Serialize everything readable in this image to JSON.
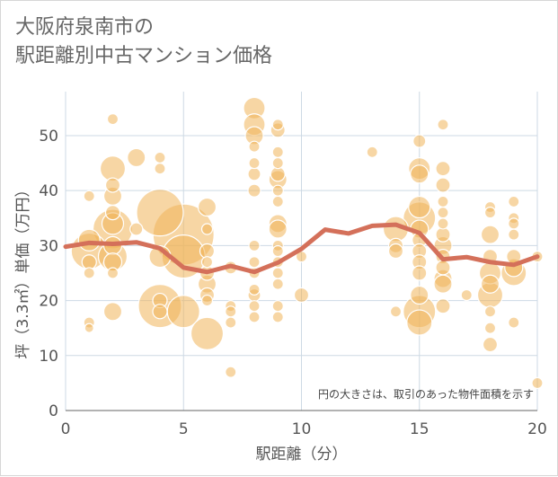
{
  "title_line1": "大阪府泉南市の",
  "title_line2": "駅距離別中古マンション価格",
  "colors": {
    "bubble": "#f0b45a",
    "line": "#d4705a",
    "grid": "#cdd9e4",
    "text": "#555555"
  },
  "chart_data": {
    "type": "scatter",
    "xlabel": "駅距離（分）",
    "ylabel": "坪（3.3㎡）単価（万円）",
    "note": "円の大きさは、取引のあった物件面積を示す",
    "xlim": [
      0,
      20
    ],
    "ylim": [
      0,
      58
    ],
    "x_ticks": [
      0,
      5,
      10,
      15,
      20
    ],
    "y_ticks": [
      0,
      10,
      20,
      30,
      40,
      50
    ],
    "grid": true,
    "bubbles": [
      {
        "x": 1,
        "y": 39,
        "s": 6
      },
      {
        "x": 1,
        "y": 31,
        "s": 12
      },
      {
        "x": 1,
        "y": 29,
        "s": 20
      },
      {
        "x": 1,
        "y": 27,
        "s": 8
      },
      {
        "x": 1,
        "y": 25,
        "s": 6
      },
      {
        "x": 1,
        "y": 16,
        "s": 6
      },
      {
        "x": 1,
        "y": 15,
        "s": 5
      },
      {
        "x": 2,
        "y": 53,
        "s": 6
      },
      {
        "x": 2,
        "y": 44,
        "s": 14
      },
      {
        "x": 2,
        "y": 41,
        "s": 8
      },
      {
        "x": 2,
        "y": 39,
        "s": 10
      },
      {
        "x": 2,
        "y": 36,
        "s": 8
      },
      {
        "x": 2,
        "y": 34,
        "s": 12
      },
      {
        "x": 2,
        "y": 33,
        "s": 22
      },
      {
        "x": 2,
        "y": 30,
        "s": 10
      },
      {
        "x": 2,
        "y": 28,
        "s": 16
      },
      {
        "x": 2,
        "y": 27,
        "s": 10
      },
      {
        "x": 2,
        "y": 25,
        "s": 6
      },
      {
        "x": 2,
        "y": 18,
        "s": 10
      },
      {
        "x": 3,
        "y": 46,
        "s": 10
      },
      {
        "x": 3,
        "y": 33,
        "s": 7
      },
      {
        "x": 4,
        "y": 46,
        "s": 6
      },
      {
        "x": 4,
        "y": 44,
        "s": 6
      },
      {
        "x": 4,
        "y": 36,
        "s": 26
      },
      {
        "x": 4,
        "y": 28,
        "s": 12
      },
      {
        "x": 4,
        "y": 20,
        "s": 8
      },
      {
        "x": 4,
        "y": 19,
        "s": 24
      },
      {
        "x": 4,
        "y": 18,
        "s": 8
      },
      {
        "x": 5,
        "y": 32,
        "s": 34
      },
      {
        "x": 5,
        "y": 28,
        "s": 24
      },
      {
        "x": 5,
        "y": 18,
        "s": 18
      },
      {
        "x": 6,
        "y": 37,
        "s": 10
      },
      {
        "x": 6,
        "y": 33,
        "s": 6
      },
      {
        "x": 6,
        "y": 29,
        "s": 8
      },
      {
        "x": 6,
        "y": 27,
        "s": 6
      },
      {
        "x": 6,
        "y": 25,
        "s": 8
      },
      {
        "x": 6,
        "y": 23,
        "s": 10
      },
      {
        "x": 6,
        "y": 21,
        "s": 8
      },
      {
        "x": 6,
        "y": 20,
        "s": 6
      },
      {
        "x": 6,
        "y": 14,
        "s": 18
      },
      {
        "x": 7,
        "y": 26,
        "s": 7
      },
      {
        "x": 7,
        "y": 19,
        "s": 6
      },
      {
        "x": 7,
        "y": 18,
        "s": 6
      },
      {
        "x": 7,
        "y": 16,
        "s": 6
      },
      {
        "x": 7,
        "y": 7,
        "s": 6
      },
      {
        "x": 8,
        "y": 55,
        "s": 12
      },
      {
        "x": 8,
        "y": 52,
        "s": 12
      },
      {
        "x": 8,
        "y": 50,
        "s": 10
      },
      {
        "x": 8,
        "y": 48,
        "s": 6
      },
      {
        "x": 8,
        "y": 45,
        "s": 6
      },
      {
        "x": 8,
        "y": 43,
        "s": 7
      },
      {
        "x": 8,
        "y": 40,
        "s": 7
      },
      {
        "x": 8,
        "y": 30,
        "s": 6
      },
      {
        "x": 8,
        "y": 27,
        "s": 6
      },
      {
        "x": 8,
        "y": 25,
        "s": 6
      },
      {
        "x": 8,
        "y": 22,
        "s": 6
      },
      {
        "x": 8,
        "y": 21,
        "s": 7
      },
      {
        "x": 8,
        "y": 19,
        "s": 6
      },
      {
        "x": 8,
        "y": 17,
        "s": 6
      },
      {
        "x": 9,
        "y": 52,
        "s": 6
      },
      {
        "x": 9,
        "y": 51,
        "s": 8
      },
      {
        "x": 9,
        "y": 47,
        "s": 6
      },
      {
        "x": 9,
        "y": 45,
        "s": 6
      },
      {
        "x": 9,
        "y": 43,
        "s": 8
      },
      {
        "x": 9,
        "y": 42,
        "s": 10
      },
      {
        "x": 9,
        "y": 40,
        "s": 6
      },
      {
        "x": 9,
        "y": 38,
        "s": 6
      },
      {
        "x": 9,
        "y": 34,
        "s": 10
      },
      {
        "x": 9,
        "y": 33,
        "s": 10
      },
      {
        "x": 9,
        "y": 30,
        "s": 6
      },
      {
        "x": 9,
        "y": 29,
        "s": 6
      },
      {
        "x": 9,
        "y": 27,
        "s": 6
      },
      {
        "x": 9,
        "y": 25,
        "s": 6
      },
      {
        "x": 9,
        "y": 23,
        "s": 6
      },
      {
        "x": 9,
        "y": 19,
        "s": 6
      },
      {
        "x": 9,
        "y": 17,
        "s": 6
      },
      {
        "x": 10,
        "y": 28,
        "s": 6
      },
      {
        "x": 10,
        "y": 21,
        "s": 8
      },
      {
        "x": 13,
        "y": 47,
        "s": 6
      },
      {
        "x": 14,
        "y": 33,
        "s": 14
      },
      {
        "x": 14,
        "y": 30,
        "s": 8
      },
      {
        "x": 14,
        "y": 29,
        "s": 8
      },
      {
        "x": 14,
        "y": 18,
        "s": 6
      },
      {
        "x": 15,
        "y": 49,
        "s": 7
      },
      {
        "x": 15,
        "y": 44,
        "s": 12
      },
      {
        "x": 15,
        "y": 43,
        "s": 10
      },
      {
        "x": 15,
        "y": 37,
        "s": 12
      },
      {
        "x": 15,
        "y": 35,
        "s": 18
      },
      {
        "x": 15,
        "y": 33,
        "s": 10
      },
      {
        "x": 15,
        "y": 31,
        "s": 8
      },
      {
        "x": 15,
        "y": 29,
        "s": 8
      },
      {
        "x": 15,
        "y": 27,
        "s": 8
      },
      {
        "x": 15,
        "y": 25,
        "s": 8
      },
      {
        "x": 15,
        "y": 21,
        "s": 10
      },
      {
        "x": 15,
        "y": 18,
        "s": 18
      },
      {
        "x": 15,
        "y": 16,
        "s": 14
      },
      {
        "x": 16,
        "y": 52,
        "s": 6
      },
      {
        "x": 16,
        "y": 44,
        "s": 8
      },
      {
        "x": 16,
        "y": 41,
        "s": 8
      },
      {
        "x": 16,
        "y": 38,
        "s": 6
      },
      {
        "x": 16,
        "y": 36,
        "s": 6
      },
      {
        "x": 16,
        "y": 34,
        "s": 6
      },
      {
        "x": 16,
        "y": 32,
        "s": 8
      },
      {
        "x": 16,
        "y": 30,
        "s": 10
      },
      {
        "x": 16,
        "y": 28,
        "s": 8
      },
      {
        "x": 16,
        "y": 26,
        "s": 8
      },
      {
        "x": 16,
        "y": 24,
        "s": 10
      },
      {
        "x": 16,
        "y": 23,
        "s": 10
      },
      {
        "x": 16,
        "y": 19,
        "s": 8
      },
      {
        "x": 17,
        "y": 21,
        "s": 6
      },
      {
        "x": 18,
        "y": 37,
        "s": 6
      },
      {
        "x": 18,
        "y": 36,
        "s": 6
      },
      {
        "x": 18,
        "y": 32,
        "s": 10
      },
      {
        "x": 18,
        "y": 28,
        "s": 8
      },
      {
        "x": 18,
        "y": 25,
        "s": 12
      },
      {
        "x": 18,
        "y": 23,
        "s": 10
      },
      {
        "x": 18,
        "y": 21,
        "s": 14
      },
      {
        "x": 18,
        "y": 18,
        "s": 6
      },
      {
        "x": 18,
        "y": 15,
        "s": 6
      },
      {
        "x": 18,
        "y": 12,
        "s": 8
      },
      {
        "x": 19,
        "y": 38,
        "s": 6
      },
      {
        "x": 19,
        "y": 35,
        "s": 6
      },
      {
        "x": 19,
        "y": 34,
        "s": 6
      },
      {
        "x": 19,
        "y": 32,
        "s": 6
      },
      {
        "x": 19,
        "y": 28,
        "s": 8
      },
      {
        "x": 19,
        "y": 26,
        "s": 10
      },
      {
        "x": 19,
        "y": 25,
        "s": 14
      },
      {
        "x": 19,
        "y": 16,
        "s": 6
      },
      {
        "x": 20,
        "y": 28,
        "s": 6
      },
      {
        "x": 20,
        "y": 5,
        "s": 6
      }
    ],
    "trend": {
      "x": [
        0,
        1,
        2,
        3,
        4,
        5,
        6,
        7,
        8,
        9,
        10,
        11,
        12,
        13,
        14,
        15,
        16,
        17,
        18,
        19,
        20
      ],
      "y": [
        29.8,
        30.5,
        30.3,
        30.6,
        29.5,
        26.0,
        25.2,
        26.3,
        25.2,
        26.9,
        29.4,
        32.9,
        32.2,
        33.6,
        33.8,
        32.3,
        27.5,
        27.9,
        27.0,
        26.5,
        28.0
      ]
    }
  }
}
